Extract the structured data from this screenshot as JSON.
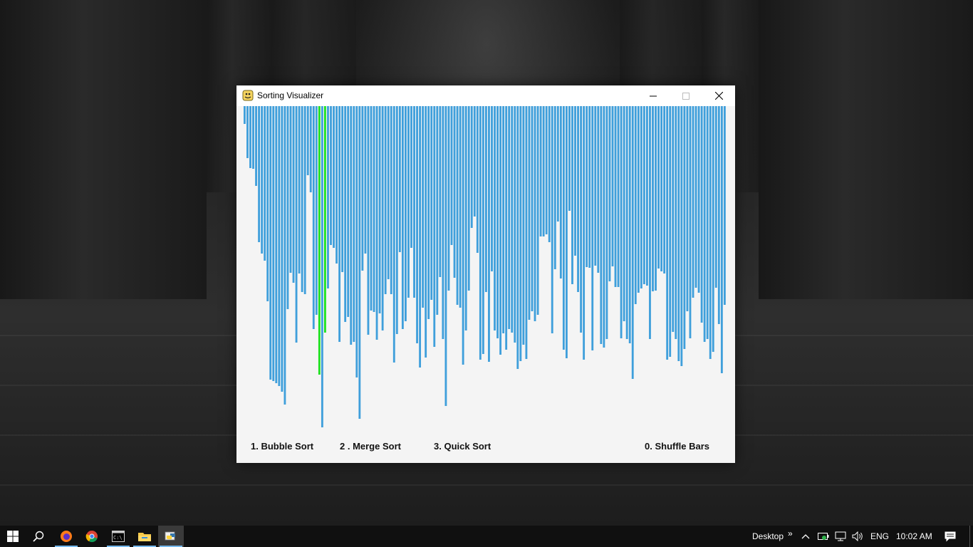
{
  "window": {
    "title": "Sorting Visualizer",
    "app_icon": "pygame-snake-icon"
  },
  "titlebar_buttons": {
    "minimize_icon": "minimize-icon",
    "maximize_icon": "maximize-icon",
    "close_icon": "close-icon"
  },
  "visualizer": {
    "bar_color": "#3f9fdb",
    "highlight_color": "#1fe21f",
    "highlight_indices": [
      26,
      28
    ],
    "bar_values": [
      25,
      73,
      87,
      88,
      112,
      191,
      207,
      217,
      274,
      384,
      386,
      389,
      393,
      401,
      419,
      285,
      234,
      248,
      332,
      235,
      261,
      264,
      97,
      121,
      313,
      293,
      377,
      451,
      318,
      256,
      195,
      199,
      221,
      331,
      233,
      303,
      296,
      335,
      331,
      381,
      439,
      231,
      207,
      321,
      287,
      289,
      328,
      291,
      315,
      264,
      243,
      264,
      360,
      320,
      205,
      313,
      302,
      269,
      199,
      269,
      333,
      367,
      283,
      353,
      299,
      272,
      338,
      293,
      240,
      327,
      421,
      259,
      195,
      241,
      279,
      283,
      363,
      315,
      259,
      171,
      155,
      206,
      356,
      348,
      261,
      359,
      232,
      315,
      326,
      349,
      319,
      342,
      313,
      318,
      332,
      369,
      358,
      335,
      355,
      300,
      288,
      302,
      293,
      183,
      183,
      180,
      191,
      319,
      229,
      162,
      242,
      342,
      354,
      147,
      250,
      210,
      261,
      318,
      356,
      226,
      227,
      343,
      224,
      234,
      334,
      339,
      327,
      246,
      225,
      254,
      254,
      326,
      302,
      327,
      333,
      383,
      278,
      262,
      256,
      250,
      252,
      327,
      260,
      259,
      228,
      232,
      235,
      356,
      352,
      317,
      327,
      358,
      365,
      341,
      288,
      326,
      269,
      255,
      262,
      304,
      331,
      327,
      355,
      345,
      255,
      306,
      375,
      279
    ]
  },
  "menu": {
    "bubble": "1. Bubble Sort",
    "merge": "2 . Merge Sort",
    "quick": "3. Quick Sort",
    "shuffle": "0. Shuffle Bars"
  },
  "taskbar": {
    "apps": [
      "windows-start-icon",
      "search-icon",
      "firefox-icon",
      "chrome-icon",
      "terminal-icon",
      "file-explorer-icon",
      "python-icon"
    ],
    "desktop_label": "Desktop",
    "chevron": "»",
    "language": "ENG",
    "time": "10:02 AM"
  }
}
